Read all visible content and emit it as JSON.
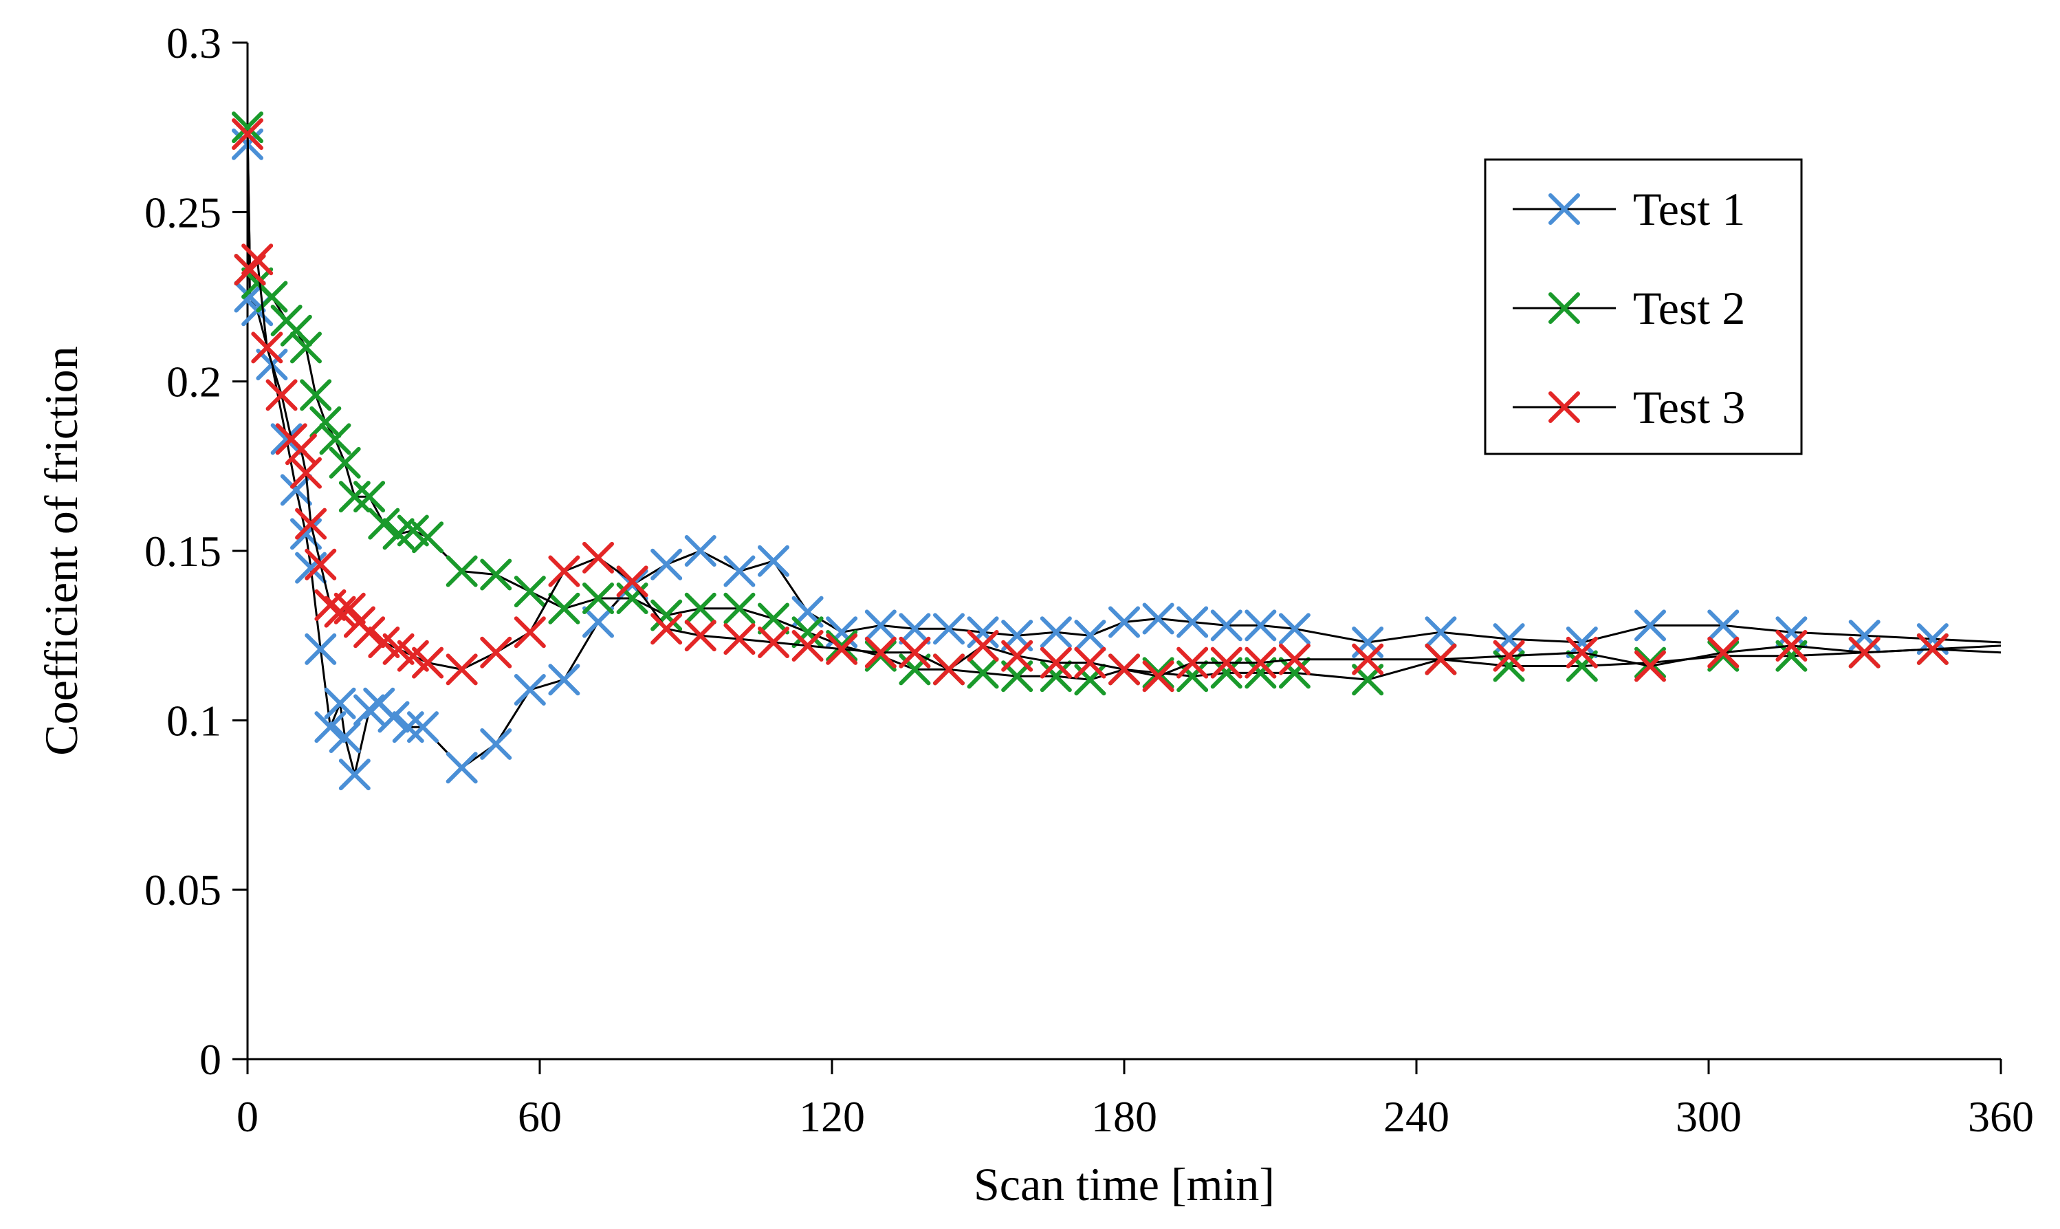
{
  "chart_data": {
    "type": "line",
    "title": "",
    "xlabel": "Scan time [min]",
    "ylabel": "Coefficient of friction",
    "xlim": [
      0,
      360
    ],
    "ylim": [
      0,
      0.3
    ],
    "xticks": [
      0,
      60,
      120,
      180,
      240,
      300,
      360
    ],
    "yticks": [
      0,
      0.05,
      0.1,
      0.15,
      0.2,
      0.25,
      0.3
    ],
    "xtick_labels": [
      "0",
      "60",
      "120",
      "180",
      "240",
      "300",
      "360"
    ],
    "ytick_labels": [
      "0",
      "0.05",
      "0.1",
      "0.15",
      "0.2",
      "0.25",
      "0.3"
    ],
    "grid": false,
    "legend_position": "top-right",
    "series": [
      {
        "name": "Test 1",
        "color": "#4a8fd6",
        "marker": "x",
        "x": [
          0,
          0.5,
          2,
          5,
          8,
          10,
          12,
          13,
          15,
          17,
          19,
          20,
          22,
          25,
          27,
          30,
          33,
          36,
          44,
          51,
          58,
          65,
          72,
          79,
          86,
          93,
          101,
          108,
          115,
          122,
          130,
          137,
          144,
          151,
          158,
          166,
          173,
          180,
          187,
          194,
          201,
          208,
          215,
          230,
          245,
          259,
          274,
          288,
          303,
          317,
          332,
          346,
          360
        ],
        "y": [
          0.27,
          0.225,
          0.221,
          0.205,
          0.183,
          0.168,
          0.155,
          0.145,
          0.121,
          0.098,
          0.105,
          0.095,
          0.084,
          0.103,
          0.105,
          0.101,
          0.098,
          0.098,
          0.086,
          0.093,
          0.109,
          0.112,
          0.129,
          0.14,
          0.146,
          0.15,
          0.144,
          0.147,
          0.132,
          0.126,
          0.128,
          0.127,
          0.127,
          0.126,
          0.125,
          0.126,
          0.125,
          0.129,
          0.13,
          0.129,
          0.128,
          0.128,
          0.127,
          0.123,
          0.126,
          0.124,
          0.123,
          0.128,
          0.128,
          0.126,
          0.125,
          0.124,
          0.123
        ]
      },
      {
        "name": "Test 2",
        "color": "#1a9a2b",
        "marker": "x",
        "x": [
          0,
          0.5,
          2,
          5,
          8,
          10,
          12,
          14,
          16,
          18,
          20,
          22,
          25,
          28,
          31,
          34,
          37,
          44,
          51,
          58,
          65,
          72,
          79,
          86,
          93,
          101,
          108,
          115,
          122,
          130,
          137,
          144,
          151,
          158,
          166,
          173,
          180,
          187,
          194,
          201,
          208,
          215,
          230,
          245,
          259,
          274,
          288,
          303,
          317,
          332,
          346,
          360
        ],
        "y": [
          0.275,
          0.233,
          0.229,
          0.225,
          0.218,
          0.215,
          0.21,
          0.196,
          0.188,
          0.183,
          0.176,
          0.166,
          0.166,
          0.158,
          0.155,
          0.156,
          0.154,
          0.144,
          0.143,
          0.138,
          0.133,
          0.136,
          0.136,
          0.131,
          0.133,
          0.133,
          0.13,
          0.126,
          0.122,
          0.119,
          0.115,
          0.115,
          0.114,
          0.113,
          0.113,
          0.112,
          0.115,
          0.114,
          0.113,
          0.114,
          0.114,
          0.114,
          0.112,
          0.118,
          0.116,
          0.116,
          0.117,
          0.119,
          0.119,
          0.12,
          0.121,
          0.12
        ]
      },
      {
        "name": "Test 3",
        "color": "#e32626",
        "marker": "x",
        "x": [
          0,
          0.5,
          2,
          4,
          7,
          9,
          11,
          12,
          13,
          15,
          17,
          19,
          21,
          23,
          25,
          28,
          31,
          34,
          37,
          44,
          51,
          58,
          65,
          72,
          79,
          86,
          93,
          101,
          108,
          115,
          122,
          130,
          137,
          144,
          151,
          158,
          166,
          173,
          180,
          187,
          194,
          201,
          208,
          215,
          230,
          245,
          259,
          274,
          288,
          303,
          317,
          332,
          346,
          360
        ],
        "y": [
          0.273,
          0.233,
          0.236,
          0.21,
          0.196,
          0.183,
          0.18,
          0.173,
          0.158,
          0.146,
          0.134,
          0.132,
          0.133,
          0.129,
          0.126,
          0.123,
          0.121,
          0.119,
          0.117,
          0.115,
          0.12,
          0.126,
          0.144,
          0.148,
          0.141,
          0.127,
          0.125,
          0.124,
          0.123,
          0.122,
          0.121,
          0.12,
          0.12,
          0.115,
          0.122,
          0.119,
          0.117,
          0.117,
          0.115,
          0.113,
          0.117,
          0.117,
          0.117,
          0.118,
          0.118,
          0.118,
          0.119,
          0.12,
          0.116,
          0.12,
          0.122,
          0.12,
          0.121,
          0.122
        ]
      }
    ]
  }
}
